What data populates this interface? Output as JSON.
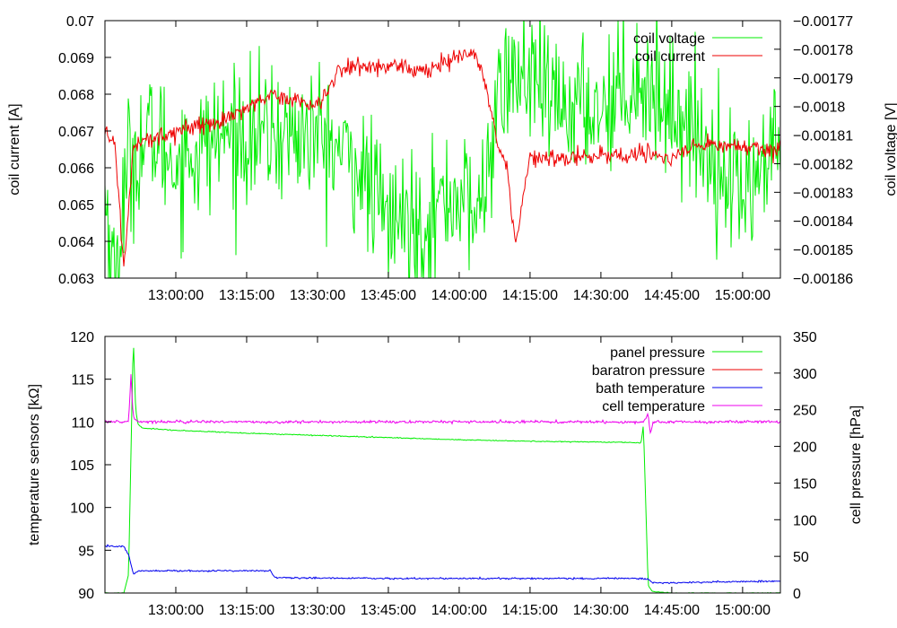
{
  "chart_data": [
    {
      "type": "line",
      "x_unit": "time",
      "xlim": [
        "12:45:00",
        "15:08:00"
      ],
      "x_ticks": [
        "13:00:00",
        "13:15:00",
        "13:30:00",
        "13:45:00",
        "14:00:00",
        "14:15:00",
        "14:30:00",
        "14:45:00",
        "15:00:00"
      ],
      "ylabel": "coil current [A]",
      "ylim": [
        0.063,
        0.07
      ],
      "y_ticks": [
        "0.063",
        "0.064",
        "0.065",
        "0.066",
        "0.067",
        "0.068",
        "0.069",
        "0.07"
      ],
      "y2label": "coil voltage [V]",
      "y2lim": [
        -0.00186,
        -0.00177
      ],
      "y2_ticks": [
        "−0.00186",
        "−0.00185",
        "−0.00184",
        "−0.00183",
        "−0.00182",
        "−0.00181",
        "−0.0018",
        "−0.00179",
        "−0.00178",
        "−0.00177"
      ],
      "legend_position": "top-right",
      "series": [
        {
          "name": "coil voltage",
          "axis": "right",
          "color": "#00ee00",
          "noise": 1.2e-05,
          "x": [
            "12:45",
            "12:47",
            "12:50",
            "12:55",
            "13:00",
            "13:10",
            "13:20",
            "13:30",
            "13:38",
            "13:45",
            "13:52",
            "14:00",
            "14:04",
            "14:07",
            "14:10",
            "14:15",
            "14:20",
            "14:30",
            "14:37",
            "14:45",
            "14:50",
            "14:55",
            "15:00",
            "15:05",
            "15:08"
          ],
          "y": [
            -0.00183,
            -0.00186,
            -0.00182,
            -0.00181,
            -0.00182,
            -0.00181,
            -0.00181,
            -0.00181,
            -0.00182,
            -0.00184,
            -0.00184,
            -0.00183,
            -0.00184,
            -0.00181,
            -0.00179,
            -0.00179,
            -0.0018,
            -0.0018,
            -0.00179,
            -0.0018,
            -0.00181,
            -0.00182,
            -0.00183,
            -0.00182,
            -0.00181
          ]
        },
        {
          "name": "coil current",
          "axis": "left",
          "color": "#ee0000",
          "noise": 0.00012,
          "x": [
            "12:45",
            "12:47",
            "12:49",
            "12:51",
            "12:55",
            "13:00",
            "13:10",
            "13:20",
            "13:30",
            "13:35",
            "13:45",
            "13:52",
            "14:00",
            "14:03",
            "14:05",
            "14:08",
            "14:10",
            "14:12",
            "14:15",
            "14:20",
            "14:30",
            "14:40",
            "14:45",
            "14:50",
            "15:00",
            "15:08"
          ],
          "y": [
            0.0669,
            0.0668,
            0.0632,
            0.0666,
            0.0668,
            0.067,
            0.0673,
            0.068,
            0.0677,
            0.0687,
            0.0688,
            0.0686,
            0.069,
            0.0692,
            0.0686,
            0.0668,
            0.066,
            0.064,
            0.0663,
            0.0663,
            0.0663,
            0.0664,
            0.0662,
            0.0666,
            0.0666,
            0.0665
          ]
        }
      ]
    },
    {
      "type": "line",
      "x_unit": "time",
      "xlim": [
        "12:45:00",
        "15:08:00"
      ],
      "x_ticks": [
        "13:00:00",
        "13:15:00",
        "13:30:00",
        "13:45:00",
        "14:00:00",
        "14:15:00",
        "14:30:00",
        "14:45:00",
        "15:00:00"
      ],
      "ylabel": "temperature sensors [kΩ]",
      "ylim": [
        90,
        120
      ],
      "y_ticks": [
        "90",
        "95",
        "100",
        "105",
        "110",
        "115",
        "120"
      ],
      "y2label": "cell pressure [hPa]",
      "y2lim": [
        0,
        350
      ],
      "y2_ticks": [
        "0",
        "50",
        "100",
        "150",
        "200",
        "250",
        "300",
        "350"
      ],
      "legend_position": "top-right",
      "series": [
        {
          "name": "panel pressure",
          "axis": "right",
          "color": "#00ee00",
          "noise": 0.3,
          "x": [
            "12:45",
            "12:49",
            "12:50",
            "12:51",
            "12:51.5",
            "12:52",
            "12:53",
            "13:00",
            "13:15",
            "13:30",
            "13:45",
            "14:00",
            "14:15",
            "14:30",
            "14:38.5",
            "14:39",
            "14:40",
            "14:41",
            "14:45",
            "15:08"
          ],
          "y": [
            0,
            0,
            25,
            350,
            250,
            230,
            225,
            222,
            218,
            215,
            212,
            209,
            207,
            206,
            205,
            230,
            10,
            2,
            0,
            0
          ]
        },
        {
          "name": "baratron pressure",
          "axis": "right",
          "color": "#ee0000",
          "noise": 0,
          "x": [
            "12:45",
            "12:49",
            "14:40",
            "14:41",
            "15:08"
          ],
          "y": [
            0,
            0,
            0,
            0,
            0
          ]
        },
        {
          "name": "bath temperature",
          "axis": "left",
          "color": "#0000ee",
          "noise": 0.05,
          "x": [
            "12:45",
            "12:49",
            "12:50",
            "12:51",
            "12:52",
            "13:20",
            "13:21",
            "13:45",
            "14:00",
            "14:15",
            "14:30",
            "14:39",
            "14:40",
            "14:41",
            "14:45",
            "15:08"
          ],
          "y": [
            95.5,
            95.4,
            94.5,
            92.2,
            92.6,
            92.6,
            91.8,
            91.7,
            91.7,
            91.7,
            91.7,
            91.7,
            91.6,
            91.2,
            91.2,
            91.4
          ]
        },
        {
          "name": "cell temperature",
          "axis": "left",
          "color": "#ee00ee",
          "noise": 0.08,
          "x": [
            "12:45",
            "12:50",
            "12:50.5",
            "12:51",
            "12:52",
            "13:30",
            "14:39",
            "14:40",
            "14:40.5",
            "14:41",
            "15:08"
          ],
          "y": [
            110.0,
            110.0,
            115.5,
            110.5,
            110.0,
            110.0,
            110.0,
            111.0,
            108.5,
            110.0,
            110.0
          ]
        }
      ]
    }
  ]
}
